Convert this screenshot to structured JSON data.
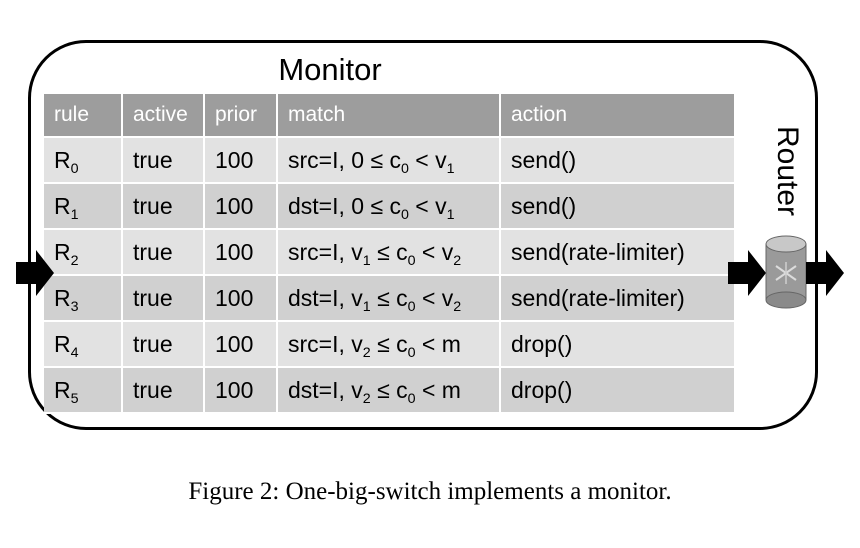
{
  "monitor": {
    "title": "Monitor"
  },
  "table": {
    "headers": [
      "rule",
      "active",
      "prior",
      "match",
      "action"
    ],
    "rows": [
      {
        "rule": "R",
        "rule_sub": "0",
        "active": "true",
        "prior": "100",
        "match_parts": [
          "src=I, 0 ≤ c",
          "0",
          " < v",
          "1",
          ""
        ],
        "action": "send()"
      },
      {
        "rule": "R",
        "rule_sub": "1",
        "active": "true",
        "prior": "100",
        "match_parts": [
          "dst=I, 0 ≤ c",
          "0",
          " < v",
          "1",
          ""
        ],
        "action": "send()"
      },
      {
        "rule": "R",
        "rule_sub": "2",
        "active": "true",
        "prior": "100",
        "match_parts": [
          "src=I, v",
          "1",
          " ≤ c",
          "0",
          " < v",
          "2"
        ],
        "action": "send(rate-limiter)"
      },
      {
        "rule": "R",
        "rule_sub": "3",
        "active": "true",
        "prior": "100",
        "match_parts": [
          "dst=I, v",
          "1",
          " ≤ c",
          "0",
          " < v",
          "2"
        ],
        "action": "send(rate-limiter)"
      },
      {
        "rule": "R",
        "rule_sub": "4",
        "active": "true",
        "prior": "100",
        "match_parts": [
          "src=I, v",
          "2",
          " ≤ c",
          "0",
          " < m"
        ],
        "action": "drop()"
      },
      {
        "rule": "R",
        "rule_sub": "5",
        "active": "true",
        "prior": "100",
        "match_parts": [
          "dst=I, v",
          "2",
          " ≤ c",
          "0",
          " < m"
        ],
        "action": "drop()"
      }
    ]
  },
  "router": {
    "label": "Router"
  },
  "caption": "Figure 2: One-big-switch implements a monitor."
}
